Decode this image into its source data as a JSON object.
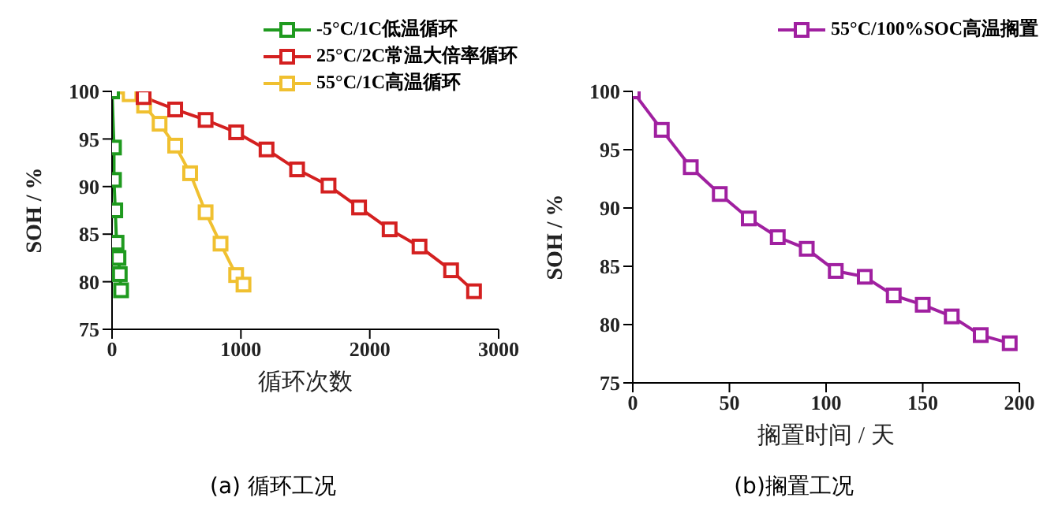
{
  "chart_data": [
    {
      "type": "line",
      "xlabel": "循环次数",
      "ylabel": "SOH / %",
      "xlim": [
        0,
        3000
      ],
      "xticks": [
        0,
        1000,
        2000,
        3000
      ],
      "ylim": [
        75,
        100
      ],
      "yticks": [
        75,
        80,
        85,
        90,
        95,
        100
      ],
      "marker": "square",
      "legend": "top right",
      "grid": false,
      "annotations": [
        "(a)  循环工况"
      ],
      "series": [
        {
          "name": "-5°C/1C低温循环",
          "color": "#1f9a1f",
          "x": [
            0,
            15,
            15,
            25,
            35,
            50,
            60,
            70
          ],
          "values": [
            100,
            94.1,
            90.7,
            87.5,
            84.1,
            82.5,
            80.8,
            79.1
          ]
        },
        {
          "name": "25°C/2C常温大倍率循环",
          "color": "#d42020",
          "x": [
            245,
            490,
            726,
            963,
            1199,
            1436,
            1680,
            1917,
            2154,
            2386,
            2631,
            2809
          ],
          "values": [
            99.4,
            98.1,
            97,
            95.7,
            93.9,
            91.8,
            90.1,
            87.8,
            85.5,
            83.7,
            81.2,
            79
          ]
        },
        {
          "name": "55°C/1C高温循环",
          "color": "#f0c030",
          "x": [
            0,
            137,
            249,
            369,
            490,
            606,
            726,
            842,
            963,
            1020
          ],
          "values": [
            100,
            99.7,
            98.5,
            96.6,
            94.3,
            91.4,
            87.3,
            84,
            80.7,
            79.7
          ]
        }
      ]
    },
    {
      "type": "line",
      "xlabel": "搁置时间 / 天",
      "ylabel": "SOH / %",
      "xlim": [
        0,
        200
      ],
      "xticks": [
        0,
        50,
        100,
        150,
        200
      ],
      "ylim": [
        75,
        100
      ],
      "yticks": [
        75,
        80,
        85,
        90,
        95,
        100
      ],
      "marker": "square",
      "legend": "top right",
      "grid": false,
      "annotations": [
        "(b)搁置工况"
      ],
      "series": [
        {
          "name": "55°C/100%SOC高温搁置",
          "color": "#a020a0",
          "x": [
            0,
            15,
            30,
            45,
            60,
            75,
            90,
            105,
            120,
            135,
            150,
            165,
            180,
            195
          ],
          "values": [
            100,
            96.7,
            93.5,
            91.2,
            89.1,
            87.5,
            86.5,
            84.6,
            84.1,
            82.5,
            81.7,
            80.7,
            79.1,
            78.4
          ]
        }
      ]
    }
  ]
}
